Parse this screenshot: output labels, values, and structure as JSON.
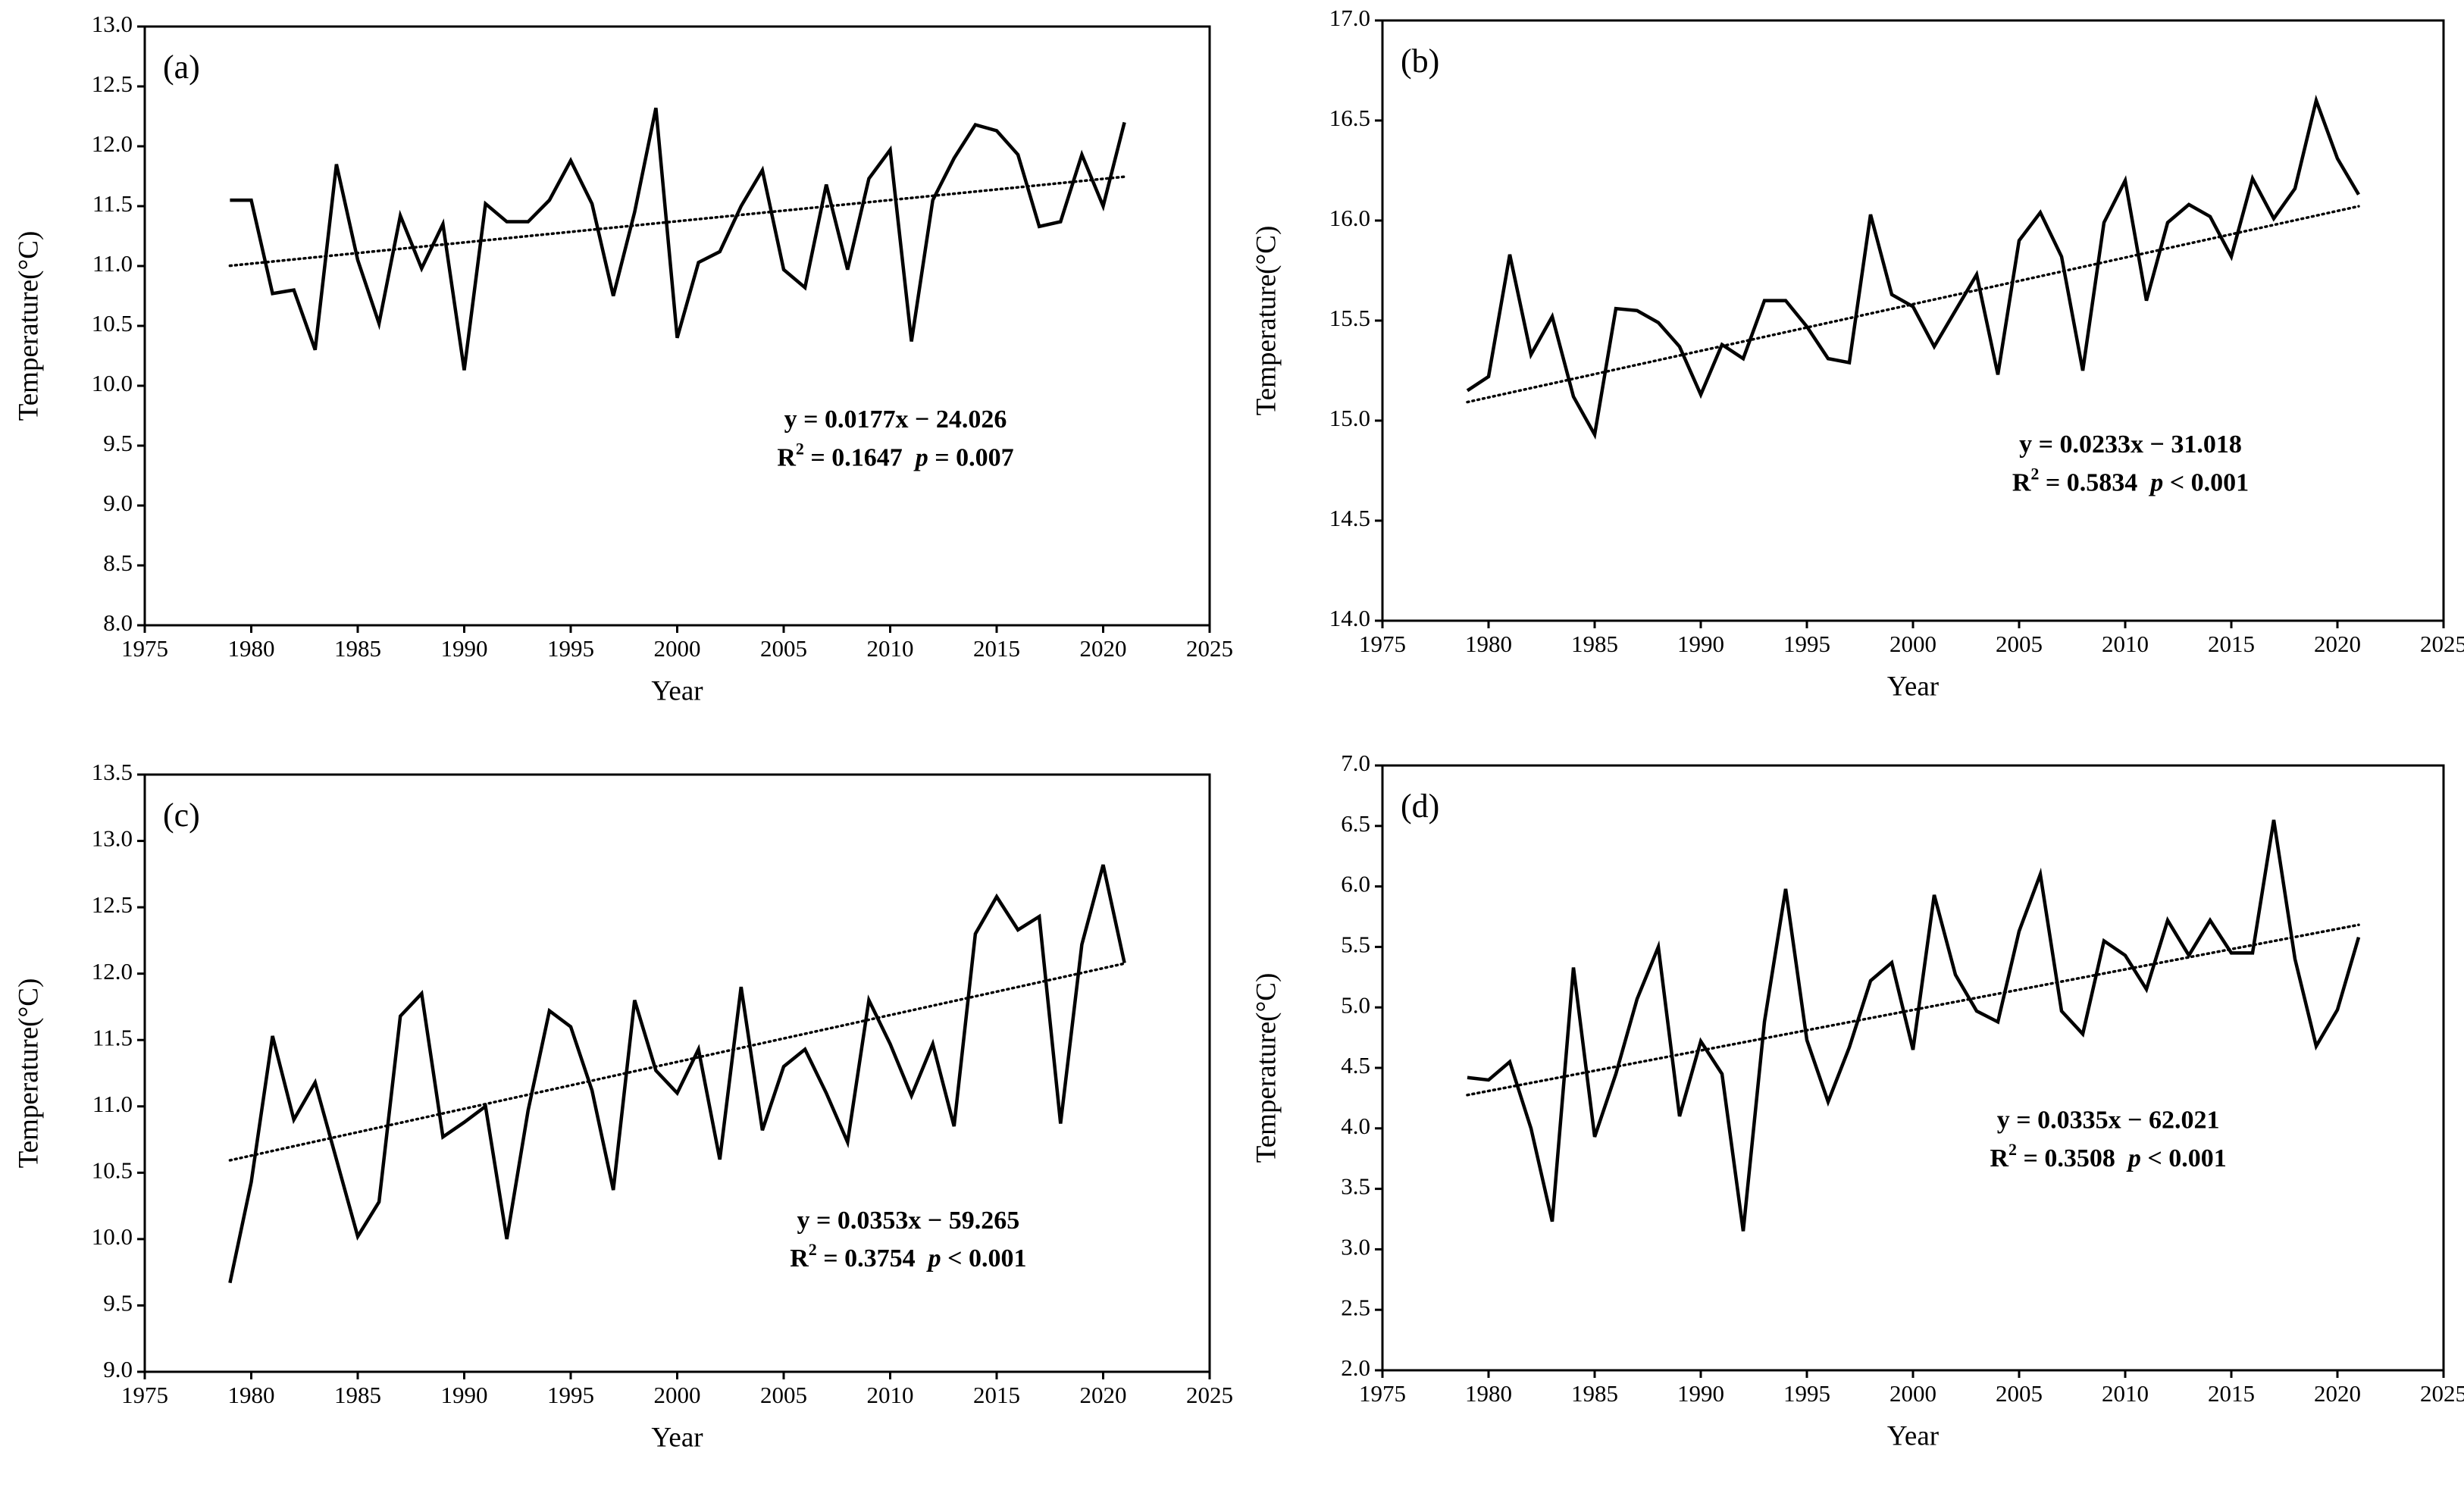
{
  "chart_data": [
    {
      "type": "line",
      "panel_label": "(a)",
      "x_label": "Year",
      "y_label": "Temperature(°C)",
      "x": [
        1979,
        1980,
        1981,
        1982,
        1983,
        1984,
        1985,
        1986,
        1987,
        1988,
        1989,
        1990,
        1991,
        1992,
        1993,
        1994,
        1995,
        1996,
        1997,
        1998,
        1999,
        2000,
        2001,
        2002,
        2003,
        2004,
        2005,
        2006,
        2007,
        2008,
        2009,
        2010,
        2011,
        2012,
        2013,
        2014,
        2015,
        2016,
        2017,
        2018,
        2019,
        2020,
        2021
      ],
      "series": [
        {
          "color": "#000000",
          "values": [
            11.55,
            11.55,
            10.77,
            10.8,
            10.3,
            11.85,
            11.05,
            10.52,
            11.42,
            10.98,
            11.35,
            10.13,
            11.52,
            11.37,
            11.37,
            11.55,
            11.88,
            11.52,
            10.75,
            11.45,
            12.32,
            10.4,
            11.03,
            11.12,
            11.5,
            11.8,
            10.97,
            10.82,
            11.68,
            10.97,
            11.73,
            11.97,
            10.37,
            11.55,
            11.9,
            12.18,
            12.13,
            11.93,
            11.33,
            11.37,
            11.93,
            11.5,
            12.2
          ]
        }
      ],
      "trendline": {
        "slope": 0.0177,
        "intercept": -24.026
      },
      "fit": {
        "equation": "y = 0.0177x − 24.026",
        "r2_symbol": "R",
        "r2_sup": "2",
        "r2_value": " = 0.1647  ",
        "p_symbol": "p",
        "p_value": " = 0.007"
      },
      "xlim": [
        1975,
        2025
      ],
      "xticks": [
        1975,
        1980,
        1985,
        1990,
        1995,
        2000,
        2005,
        2010,
        2015,
        2020,
        2025
      ],
      "ylim": [
        8,
        13
      ],
      "yticks": [
        {
          "value": 8,
          "label": "8.0"
        },
        8.5,
        {
          "value": 9,
          "label": "9.0"
        },
        9.5,
        {
          "value": 10,
          "label": "10.0"
        },
        10.5,
        {
          "value": 11,
          "label": "11.0"
        },
        11.5,
        {
          "value": 12,
          "label": "12.0"
        },
        12.5,
        {
          "value": 13,
          "label": "13.0"
        }
      ]
    },
    {
      "type": "line",
      "panel_label": "(b)",
      "x_label": "Year",
      "y_label": "Temperature(°C)",
      "x": [
        1979,
        1980,
        1981,
        1982,
        1983,
        1984,
        1985,
        1986,
        1987,
        1988,
        1989,
        1990,
        1991,
        1992,
        1993,
        1994,
        1995,
        1996,
        1997,
        1998,
        1999,
        2000,
        2001,
        2002,
        2003,
        2004,
        2005,
        2006,
        2007,
        2008,
        2009,
        2010,
        2011,
        2012,
        2013,
        2014,
        2015,
        2016,
        2017,
        2018,
        2019,
        2020,
        2021
      ],
      "series": [
        {
          "color": "#000000",
          "values": [
            15.15,
            15.22,
            15.83,
            15.33,
            15.52,
            15.12,
            14.93,
            15.56,
            15.55,
            15.49,
            15.37,
            15.13,
            15.38,
            15.31,
            15.6,
            15.6,
            15.47,
            15.31,
            15.29,
            16.03,
            15.63,
            15.57,
            15.37,
            15.55,
            15.73,
            15.23,
            15.9,
            16.04,
            15.82,
            15.25,
            15.99,
            16.2,
            15.6,
            15.99,
            16.08,
            16.02,
            15.82,
            16.21,
            16.01,
            16.16,
            16.6,
            16.31,
            16.13
          ]
        }
      ],
      "trendline": {
        "slope": 0.0233,
        "intercept": -31.018
      },
      "fit": {
        "equation": "y = 0.0233x − 31.018",
        "r2_symbol": "R",
        "r2_sup": "2",
        "r2_value": " = 0.5834  ",
        "p_symbol": "p",
        "p_value": " < 0.001"
      },
      "xlim": [
        1975,
        2025
      ],
      "xticks": [
        1975,
        1980,
        1985,
        1990,
        1995,
        2000,
        2005,
        2010,
        2015,
        2020,
        2025
      ],
      "ylim": [
        14,
        17
      ],
      "yticks": [
        {
          "value": 14,
          "label": "14.0"
        },
        14.5,
        {
          "value": 15,
          "label": "15.0"
        },
        15.5,
        {
          "value": 16,
          "label": "16.0"
        },
        16.5,
        {
          "value": 17,
          "label": "17.0"
        }
      ]
    },
    {
      "type": "line",
      "panel_label": "(c)",
      "x_label": "Year",
      "y_label": "Temperature(°C)",
      "x": [
        1979,
        1980,
        1981,
        1982,
        1983,
        1984,
        1985,
        1986,
        1987,
        1988,
        1989,
        1990,
        1991,
        1992,
        1993,
        1994,
        1995,
        1996,
        1997,
        1998,
        1999,
        2000,
        2001,
        2002,
        2003,
        2004,
        2005,
        2006,
        2007,
        2008,
        2009,
        2010,
        2011,
        2012,
        2013,
        2014,
        2015,
        2016,
        2017,
        2018,
        2019,
        2020,
        2021
      ],
      "series": [
        {
          "color": "#000000",
          "values": [
            9.67,
            10.43,
            11.53,
            10.9,
            11.18,
            10.6,
            10.02,
            10.28,
            11.68,
            11.85,
            10.77,
            10.88,
            11.0,
            10.0,
            10.97,
            11.72,
            11.6,
            11.12,
            10.37,
            11.8,
            11.27,
            11.1,
            11.43,
            10.6,
            11.9,
            10.82,
            11.3,
            11.43,
            11.1,
            10.73,
            11.8,
            11.47,
            11.08,
            11.47,
            10.85,
            12.3,
            12.58,
            12.33,
            12.43,
            10.87,
            12.22,
            12.82,
            12.08
          ]
        }
      ],
      "trendline": {
        "slope": 0.0353,
        "intercept": -59.265
      },
      "fit": {
        "equation": "y = 0.0353x − 59.265",
        "r2_symbol": "R",
        "r2_sup": "2",
        "r2_value": " = 0.3754  ",
        "p_symbol": "p",
        "p_value": " < 0.001"
      },
      "xlim": [
        1975,
        2025
      ],
      "xticks": [
        1975,
        1980,
        1985,
        1990,
        1995,
        2000,
        2005,
        2010,
        2015,
        2020,
        2025
      ],
      "ylim": [
        9,
        13.5
      ],
      "yticks": [
        {
          "value": 9,
          "label": "9.0"
        },
        9.5,
        {
          "value": 10,
          "label": "10.0"
        },
        10.5,
        {
          "value": 11,
          "label": "11.0"
        },
        11.5,
        {
          "value": 12,
          "label": "12.0"
        },
        12.5,
        {
          "value": 13,
          "label": "13.0"
        },
        13.5
      ]
    },
    {
      "type": "line",
      "panel_label": "(d)",
      "x_label": "Year",
      "y_label": "Temperature(°C)",
      "x": [
        1979,
        1980,
        1981,
        1982,
        1983,
        1984,
        1985,
        1986,
        1987,
        1988,
        1989,
        1990,
        1991,
        1992,
        1993,
        1994,
        1995,
        1996,
        1997,
        1998,
        1999,
        2000,
        2001,
        2002,
        2003,
        2004,
        2005,
        2006,
        2007,
        2008,
        2009,
        2010,
        2011,
        2012,
        2013,
        2014,
        2015,
        2016,
        2017,
        2018,
        2019,
        2020,
        2021
      ],
      "series": [
        {
          "color": "#000000",
          "values": [
            4.42,
            4.4,
            4.55,
            4.0,
            3.23,
            5.33,
            3.93,
            4.45,
            5.07,
            5.5,
            4.1,
            4.72,
            4.45,
            3.15,
            4.88,
            5.98,
            4.73,
            4.22,
            4.67,
            5.22,
            5.37,
            4.65,
            5.93,
            5.27,
            4.97,
            4.88,
            5.63,
            6.1,
            4.97,
            4.78,
            5.55,
            5.43,
            5.15,
            5.72,
            5.43,
            5.72,
            5.45,
            5.45,
            6.55,
            5.4,
            4.68,
            4.98,
            5.58
          ]
        }
      ],
      "trendline": {
        "slope": 0.0335,
        "intercept": -62.021
      },
      "fit": {
        "equation": "y = 0.0335x − 62.021",
        "r2_symbol": "R",
        "r2_sup": "2",
        "r2_value": " = 0.3508  ",
        "p_symbol": "p",
        "p_value": " < 0.001"
      },
      "xlim": [
        1975,
        2025
      ],
      "xticks": [
        1975,
        1980,
        1985,
        1990,
        1995,
        2000,
        2005,
        2010,
        2015,
        2020,
        2025
      ],
      "ylim": [
        2,
        7
      ],
      "yticks": [
        {
          "value": 2,
          "label": "2.0"
        },
        2.5,
        {
          "value": 3,
          "label": "3.0"
        },
        3.5,
        {
          "value": 4,
          "label": "4.0"
        },
        4.5,
        {
          "value": 5,
          "label": "5.0"
        },
        5.5,
        {
          "value": 6,
          "label": "6.0"
        },
        6.5,
        {
          "value": 7,
          "label": "7.0"
        }
      ]
    }
  ]
}
